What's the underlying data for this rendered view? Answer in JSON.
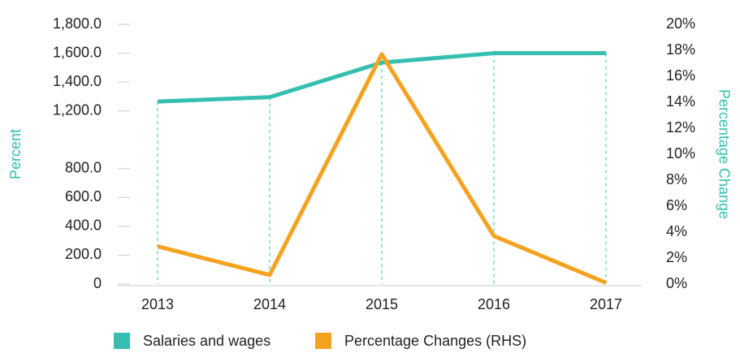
{
  "chart_data": {
    "type": "line",
    "categories": [
      "2013",
      "2014",
      "2015",
      "2016",
      "2017"
    ],
    "ylabel": "Percent",
    "y2label": "Percentage Change",
    "ylim": [
      0,
      1800
    ],
    "yticks": [
      0,
      {
        "value": 200,
        "label": "200.0"
      },
      {
        "value": 400,
        "label": "400.0"
      },
      {
        "value": 600,
        "label": "600.0"
      },
      {
        "value": 800,
        "label": "800.0"
      },
      {
        "value": 1200,
        "label": "1,200.0"
      },
      {
        "value": 1400,
        "label": "1,400.0"
      },
      {
        "value": 1600,
        "label": "1,600.0"
      },
      {
        "value": 1800,
        "label": "1,800.0"
      }
    ],
    "y2lim": [
      0,
      20
    ],
    "y2ticks": [
      {
        "value": 0,
        "label": "0%"
      },
      {
        "value": 2,
        "label": "2%"
      },
      {
        "value": 4,
        "label": "4%"
      },
      {
        "value": 6,
        "label": "6%"
      },
      {
        "value": 8,
        "label": "8%"
      },
      {
        "value": 10,
        "label": "10%"
      },
      {
        "value": 12,
        "label": "12%"
      },
      {
        "value": 14,
        "label": "14%"
      },
      {
        "value": 16,
        "label": "16%"
      },
      {
        "value": 18,
        "label": "18%"
      },
      {
        "value": 20,
        "label": "20%"
      }
    ],
    "series": [
      {
        "name": "Salaries and wages",
        "color": "#35bfb0",
        "values": [
          1265,
          1295,
          1535,
          1600,
          1600
        ]
      },
      {
        "name": "Percentage Changes (RHS)",
        "color": "#f5a21f",
        "axis": "y2",
        "values": [
          2.9,
          0.7,
          17.7,
          3.7,
          0.1
        ]
      }
    ]
  }
}
